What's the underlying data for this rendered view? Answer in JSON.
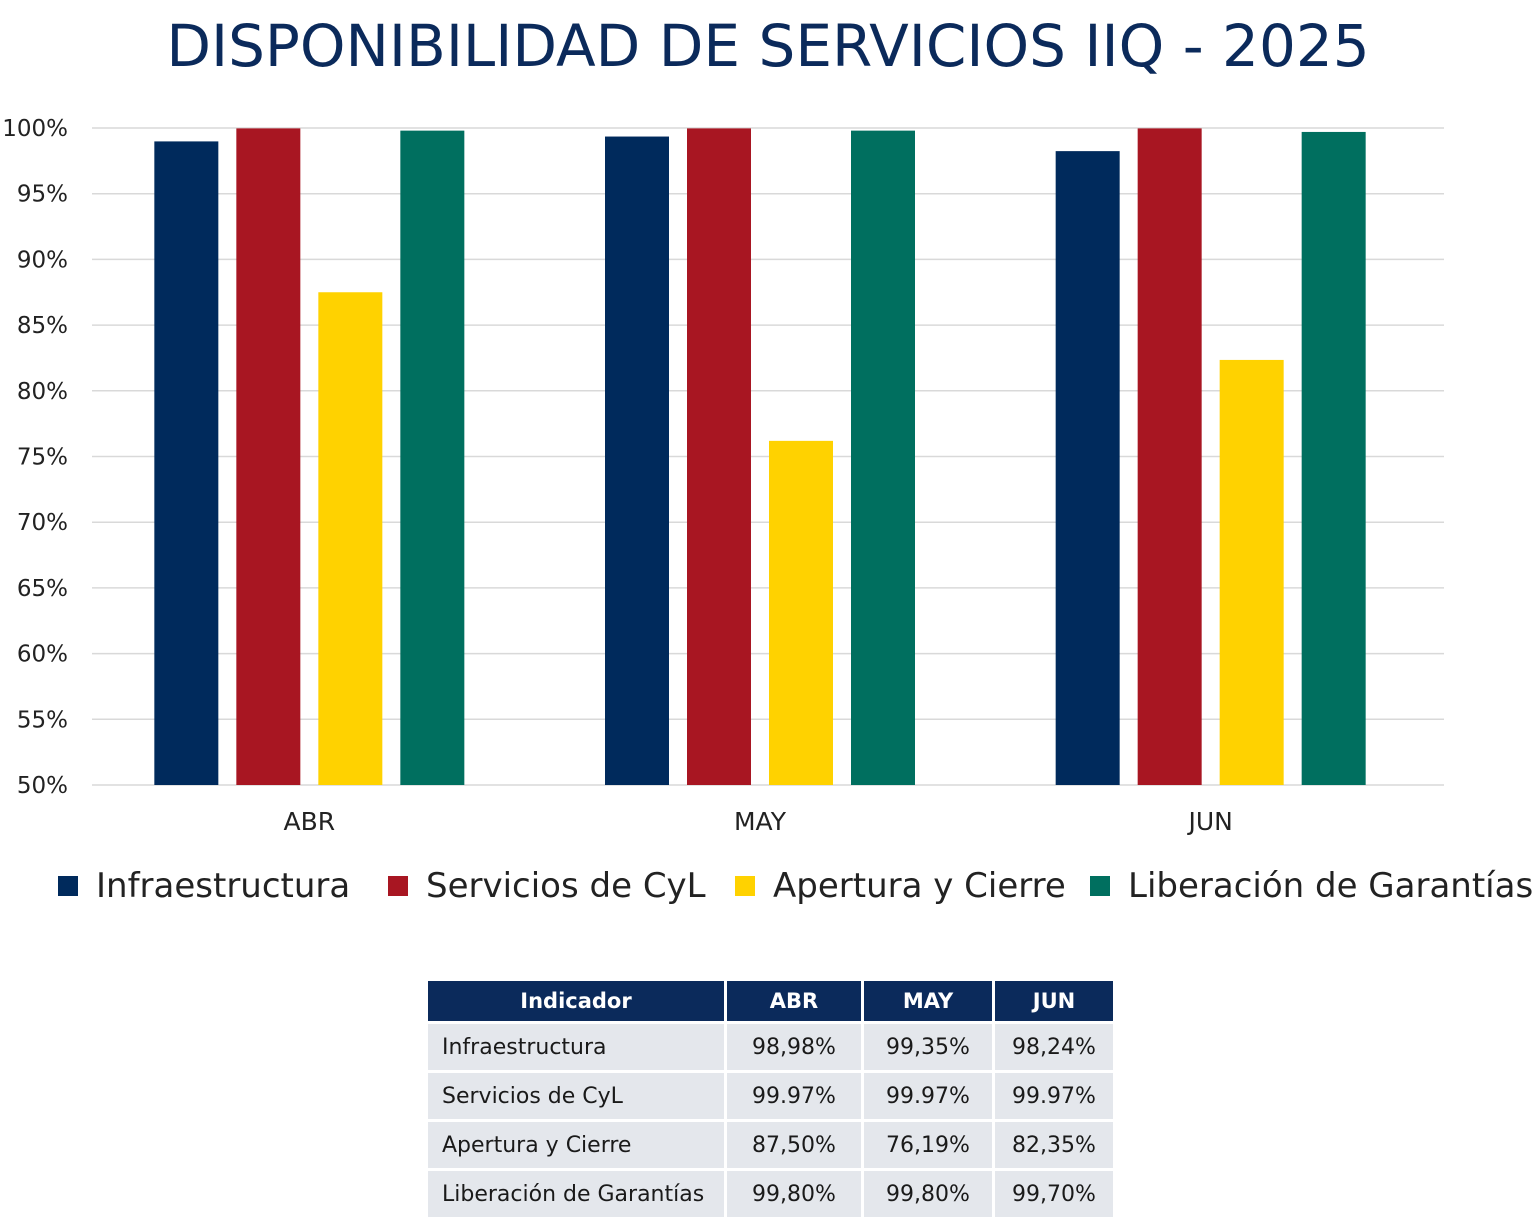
{
  "colors": {
    "title": "#0b2a5b",
    "series": [
      "#002a5c",
      "#a81622",
      "#ffd200",
      "#006f5f"
    ],
    "grid": "#d9d9d9",
    "table_header": "#0b2a5b",
    "table_cell": "#e4e7ec"
  },
  "chart_data": {
    "type": "bar",
    "title": "DISPONIBILIDAD DE SERVICIOS IIQ - 2025",
    "categories": [
      "ABR",
      "MAY",
      "JUN"
    ],
    "series": [
      {
        "name": "Infraestructura",
        "values": [
          98.98,
          99.35,
          98.24
        ]
      },
      {
        "name": "Servicios de CyL",
        "values": [
          99.97,
          99.97,
          99.97
        ]
      },
      {
        "name": "Apertura y Cierre",
        "values": [
          87.5,
          76.19,
          82.35
        ]
      },
      {
        "name": "Liberación de Garantías",
        "values": [
          99.8,
          99.8,
          99.7
        ]
      }
    ],
    "ylim": [
      50,
      100
    ],
    "yticks": [
      50,
      55,
      60,
      65,
      70,
      75,
      80,
      85,
      90,
      95,
      100
    ],
    "ytick_labels": [
      "50%",
      "55%",
      "60%",
      "65%",
      "70%",
      "75%",
      "80%",
      "85%",
      "90%",
      "95%",
      "100%"
    ],
    "grid": true,
    "legend_position": "bottom"
  },
  "table": {
    "headers": [
      "Indicador",
      "ABR",
      "MAY",
      "JUN"
    ],
    "rows": [
      [
        "Infraestructura",
        "98,98%",
        "99,35%",
        "98,24%"
      ],
      [
        "Servicios de CyL",
        "99.97%",
        "99.97%",
        "99.97%"
      ],
      [
        "Apertura y Cierre",
        "87,50%",
        "76,19%",
        "82,35%"
      ],
      [
        "Liberación de Garantías",
        "99,80%",
        "99,80%",
        "99,70%"
      ]
    ]
  }
}
